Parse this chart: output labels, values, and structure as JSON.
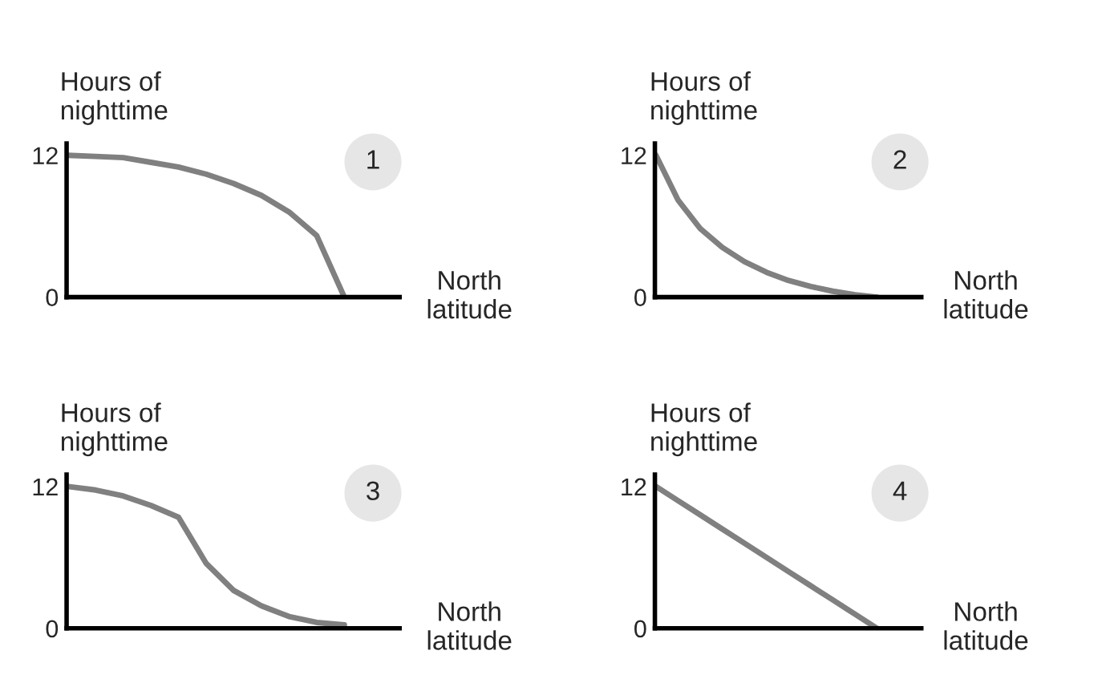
{
  "chart_data": [
    {
      "type": "line",
      "title": "1",
      "ylabel": "Hours of\nnighttime",
      "xlabel": "North\nlatitude",
      "categories": [
        null,
        null,
        null,
        null,
        null,
        null,
        null,
        null,
        null,
        null,
        null
      ],
      "ylim": [
        0,
        13
      ],
      "yticks": [
        0,
        12
      ],
      "series": [
        {
          "color": "#808080",
          "values": [
            12,
            11.9,
            11.8,
            11.4,
            11,
            10.4,
            9.6,
            8.6,
            7.2,
            5.2,
            0
          ]
        }
      ]
    },
    {
      "type": "line",
      "title": "2",
      "ylabel": "Hours of\nnighttime",
      "xlabel": "North\nlatitude",
      "categories": [
        null,
        null,
        null,
        null,
        null,
        null,
        null,
        null,
        null,
        null,
        null
      ],
      "ylim": [
        0,
        13
      ],
      "yticks": [
        0,
        12
      ],
      "series": [
        {
          "color": "#808080",
          "values": [
            12,
            8.2,
            5.8,
            4.2,
            3.0,
            2.1,
            1.4,
            0.9,
            0.5,
            0.2,
            0
          ]
        }
      ]
    },
    {
      "type": "line",
      "title": "3",
      "ylabel": "Hours of\nnighttime",
      "xlabel": "North\nlatitude",
      "categories": [
        null,
        null,
        null,
        null,
        null,
        null,
        null,
        null,
        null,
        null,
        null
      ],
      "ylim": [
        0,
        13
      ],
      "yticks": [
        0,
        12
      ],
      "series": [
        {
          "color": "#808080",
          "values": [
            12,
            11.7,
            11.2,
            10.4,
            9.4,
            5.5,
            3.2,
            1.9,
            1.0,
            0.5,
            0.3
          ]
        }
      ]
    },
    {
      "type": "line",
      "title": "4",
      "ylabel": "Hours of\nnighttime",
      "xlabel": "North\nlatitude",
      "categories": [
        null,
        null,
        null,
        null,
        null,
        null,
        null,
        null,
        null,
        null,
        null
      ],
      "ylim": [
        0,
        13
      ],
      "yticks": [
        0,
        12
      ],
      "series": [
        {
          "color": "#808080",
          "values": [
            12,
            10.8,
            9.6,
            8.4,
            7.2,
            6,
            4.8,
            3.6,
            2.4,
            1.2,
            0
          ]
        }
      ]
    }
  ]
}
